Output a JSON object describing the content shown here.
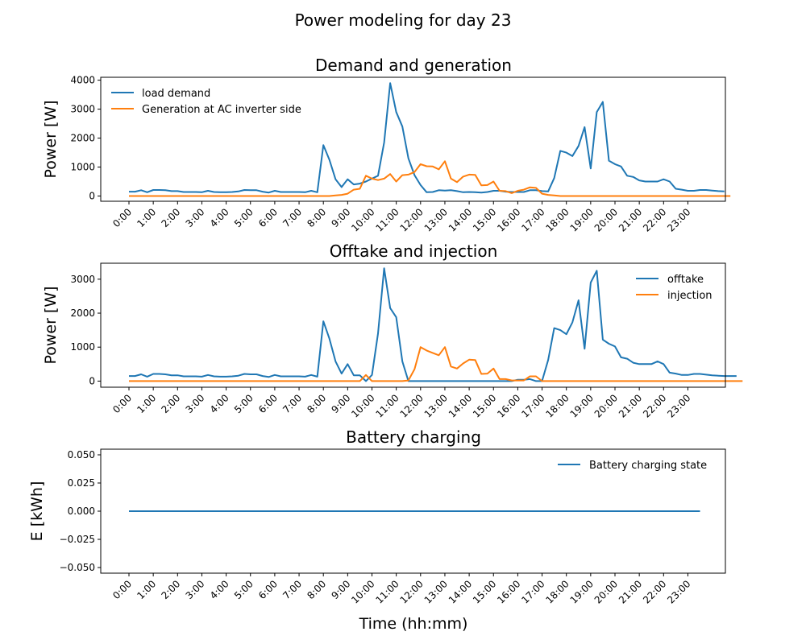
{
  "figure": {
    "suptitle": "Power modeling for day 23",
    "xlabel": "Time (hh:mm)"
  },
  "colors": {
    "blue": "#1f77b4",
    "orange": "#ff7f0e"
  },
  "time_ticks": [
    "0:00",
    "1:00",
    "2:00",
    "3:00",
    "4:00",
    "5:00",
    "6:00",
    "7:00",
    "8:00",
    "9:00",
    "10:00",
    "11:00",
    "12:00",
    "13:00",
    "14:00",
    "15:00",
    "16:00",
    "17:00",
    "18:00",
    "19:00",
    "20:00",
    "21:00",
    "22:00",
    "23:00"
  ],
  "chart_data": [
    {
      "type": "line",
      "title": "Demand and generation",
      "xlabel": "",
      "ylabel": "Power [W]",
      "ylim": [
        -180,
        4100
      ],
      "yticks": [
        0,
        1000,
        2000,
        3000,
        4000
      ],
      "legend": "top-left",
      "grid": false,
      "x_unit": "hours (15-minute samples)",
      "series": [
        {
          "name": "load demand",
          "color": "#1f77b4",
          "values": [
            150,
            150,
            200,
            130,
            210,
            210,
            200,
            170,
            170,
            140,
            140,
            140,
            130,
            180,
            140,
            130,
            130,
            140,
            160,
            210,
            200,
            200,
            150,
            120,
            180,
            140,
            140,
            140,
            140,
            130,
            180,
            130,
            1760,
            1250,
            580,
            310,
            580,
            400,
            430,
            500,
            600,
            700,
            1850,
            3900,
            2900,
            2400,
            1300,
            720,
            380,
            130,
            140,
            200,
            190,
            200,
            170,
            130,
            140,
            130,
            120,
            140,
            180,
            180,
            150,
            140,
            140,
            140,
            200,
            200,
            170,
            160,
            620,
            1560,
            1500,
            1380,
            1730,
            2380,
            950,
            2900,
            3250,
            1220,
            1100,
            1020,
            700,
            660,
            540,
            500,
            500,
            500,
            580,
            500,
            250,
            220,
            180,
            180,
            210,
            210,
            190,
            170,
            160
          ]
        },
        {
          "name": "Generation at AC inverter side",
          "color": "#ff7f0e",
          "values": [
            0,
            0,
            0,
            0,
            0,
            0,
            0,
            0,
            0,
            0,
            0,
            0,
            0,
            0,
            0,
            0,
            0,
            0,
            0,
            0,
            0,
            0,
            0,
            0,
            0,
            0,
            0,
            0,
            0,
            0,
            0,
            0,
            0,
            0,
            20,
            40,
            80,
            220,
            250,
            700,
            600,
            550,
            600,
            760,
            500,
            720,
            740,
            830,
            1100,
            1030,
            1020,
            920,
            1200,
            600,
            480,
            670,
            740,
            730,
            370,
            380,
            500,
            180,
            170,
            100,
            180,
            220,
            300,
            280,
            80,
            40,
            20,
            0,
            0,
            0,
            0,
            0,
            0,
            0,
            0,
            0,
            0,
            0,
            0,
            0,
            0,
            0,
            0,
            0,
            0,
            0,
            0,
            0,
            0,
            0,
            0,
            0,
            0,
            0,
            0,
            0
          ]
        }
      ]
    },
    {
      "type": "line",
      "title": "Offtake and injection",
      "xlabel": "",
      "ylabel": "Power [W]",
      "ylim": [
        -180,
        3470
      ],
      "yticks": [
        0,
        1000,
        2000,
        3000
      ],
      "legend": "top-right",
      "grid": false,
      "x_unit": "hours (15-minute samples)",
      "series": [
        {
          "name": "offtake",
          "color": "#1f77b4",
          "values": [
            150,
            150,
            200,
            130,
            210,
            210,
            200,
            170,
            170,
            140,
            140,
            140,
            130,
            180,
            140,
            130,
            130,
            140,
            160,
            210,
            200,
            200,
            150,
            120,
            180,
            140,
            140,
            140,
            140,
            130,
            180,
            130,
            1760,
            1250,
            580,
            220,
            500,
            170,
            170,
            0,
            180,
            1400,
            3320,
            2150,
            1880,
            580,
            0,
            0,
            0,
            0,
            0,
            0,
            0,
            0,
            0,
            0,
            0,
            0,
            0,
            0,
            0,
            0,
            0,
            0,
            40,
            40,
            60,
            0,
            0,
            620,
            1560,
            1500,
            1380,
            1730,
            2380,
            950,
            2900,
            3250,
            1220,
            1100,
            1020,
            700,
            660,
            540,
            500,
            500,
            500,
            580,
            500,
            250,
            220,
            180,
            180,
            210,
            210,
            190,
            170,
            160,
            150,
            150,
            150
          ]
        },
        {
          "name": "injection",
          "color": "#ff7f0e",
          "values": [
            0,
            0,
            0,
            0,
            0,
            0,
            0,
            0,
            0,
            0,
            0,
            0,
            0,
            0,
            0,
            0,
            0,
            0,
            0,
            0,
            0,
            0,
            0,
            0,
            0,
            0,
            0,
            0,
            0,
            0,
            0,
            0,
            0,
            0,
            0,
            0,
            0,
            0,
            0,
            180,
            0,
            0,
            0,
            0,
            0,
            0,
            20,
            350,
            1000,
            900,
            830,
            760,
            1000,
            430,
            370,
            520,
            630,
            620,
            210,
            220,
            370,
            60,
            60,
            20,
            20,
            20,
            140,
            140,
            0,
            0,
            0,
            0,
            0,
            0,
            0,
            0,
            0,
            0,
            0,
            0,
            0,
            0,
            0,
            0,
            0,
            0,
            0,
            0,
            0,
            0,
            0,
            0,
            0,
            0,
            0,
            0,
            0,
            0,
            0,
            0,
            0,
            0
          ]
        }
      ]
    },
    {
      "type": "line",
      "title": "Battery charging",
      "xlabel": "Time (hh:mm)",
      "ylabel": "E [kWh]",
      "ylim": [
        -0.055,
        0.055
      ],
      "yticks": [
        "0.050",
        "0.025",
        "0.000",
        "−0.025",
        "−0.050"
      ],
      "ytick_values": [
        0.05,
        0.025,
        0,
        -0.025,
        -0.05
      ],
      "legend": "top-right",
      "grid": false,
      "x_unit": "hours (15-minute samples)",
      "series": [
        {
          "name": "Battery charging state",
          "color": "#1f77b4",
          "values": "constant 0.000 over the full day"
        }
      ]
    }
  ]
}
